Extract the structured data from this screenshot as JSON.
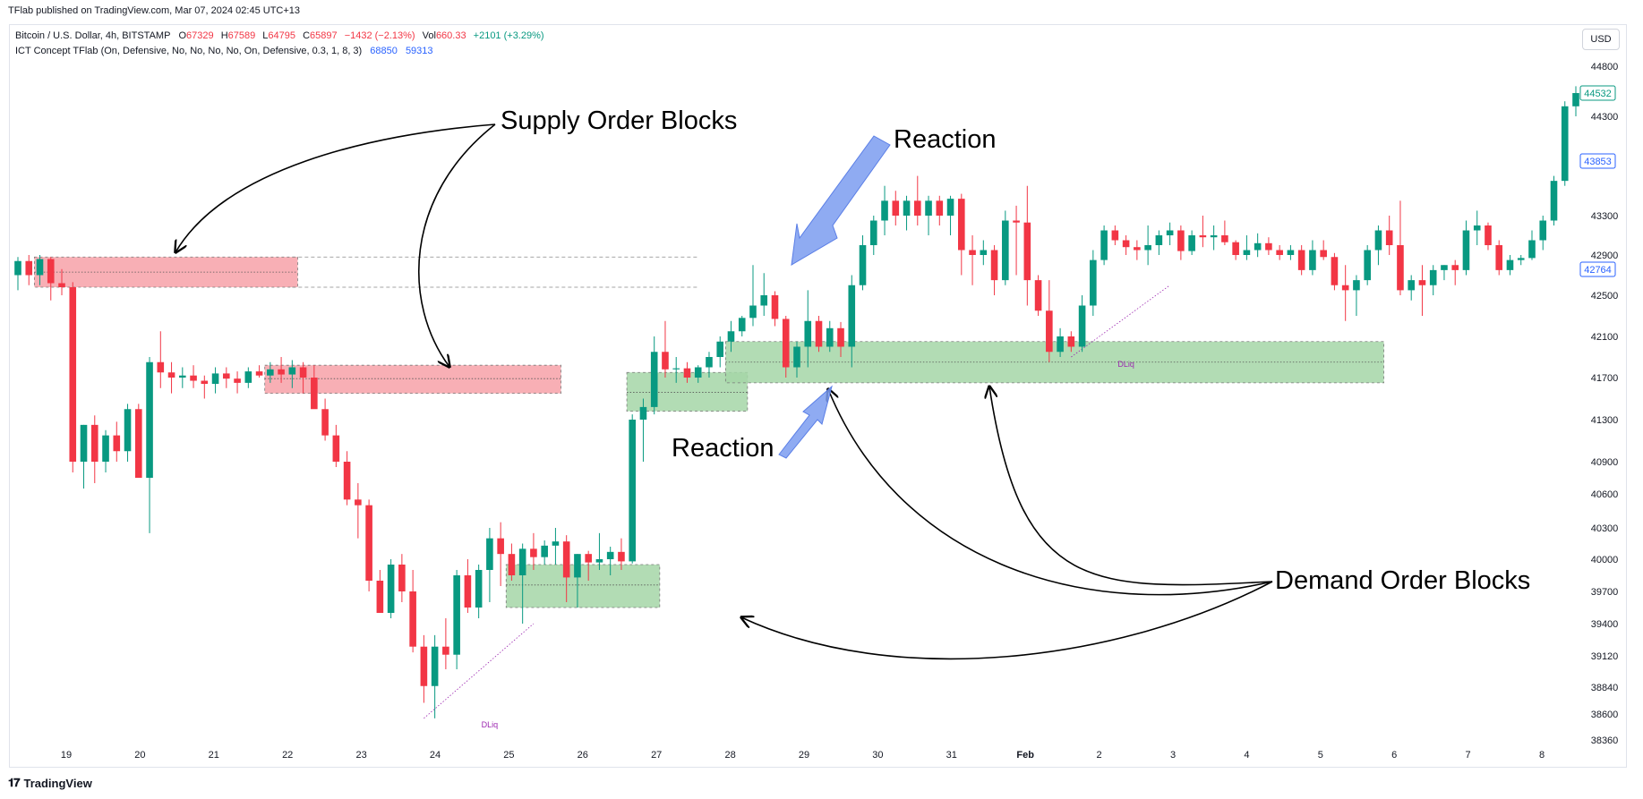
{
  "header": {
    "publisher": "TFlab published on TradingView.com, Mar 07, 2024 02:45 UTC+13"
  },
  "legend": {
    "symbol": "Bitcoin / U.S. Dollar, 4h, BITSTAMP",
    "o_label": "O",
    "o_value": "67329",
    "h_label": "H",
    "h_value": "67589",
    "l_label": "L",
    "l_value": "64795",
    "c_label": "C",
    "c_value": "65897",
    "change": "−1432 (−2.13%)",
    "vol_label": "Vol",
    "vol_value": "660.33",
    "vol_change": "+2101 (+3.29%)",
    "indicator": "ICT Concept TFlab (On, Defensive, No, No, No, No, On, Defensive, 0.3, 1, 8, 3)",
    "ind_value_1": "68850",
    "ind_value_2": "59313"
  },
  "currency_button": "USD",
  "footer": {
    "brand": "TradingView"
  },
  "colors": {
    "up": "#089981",
    "down": "#f23645",
    "supply_zone": "#f7a1a8",
    "demand_zone": "#a5d6a7",
    "reaction_arrow": "#7b9cf0",
    "dliq": "#9c27b0",
    "blue_label": "#2962ff"
  },
  "chart_data": {
    "type": "candlestick",
    "title": "Bitcoin / U.S. Dollar, 4h, BITSTAMP",
    "x_ticks": [
      "19",
      "20",
      "21",
      "22",
      "23",
      "24",
      "25",
      "26",
      "27",
      "28",
      "29",
      "30",
      "31",
      "Feb",
      "2",
      "3",
      "4",
      "5",
      "6",
      "7",
      "8"
    ],
    "y_ticks": [
      44800,
      44300,
      43300,
      42900,
      42500,
      42100,
      41700,
      41300,
      40900,
      40600,
      40300,
      40000,
      39700,
      39400,
      39120,
      38840,
      38600,
      38360
    ],
    "y_scale": "irregular price axis as labeled",
    "candles": [
      {
        "o": 42700,
        "h": 42880,
        "l": 42550,
        "c": 42840
      },
      {
        "o": 42840,
        "h": 42900,
        "l": 42600,
        "c": 42700
      },
      {
        "o": 42700,
        "h": 42900,
        "l": 42600,
        "c": 42860
      },
      {
        "o": 42860,
        "h": 42880,
        "l": 42450,
        "c": 42620
      },
      {
        "o": 42620,
        "h": 42760,
        "l": 42500,
        "c": 42580
      },
      {
        "o": 42580,
        "h": 42630,
        "l": 40800,
        "c": 40900
      },
      {
        "o": 40900,
        "h": 41250,
        "l": 40650,
        "c": 41250
      },
      {
        "o": 41250,
        "h": 41340,
        "l": 40700,
        "c": 40900
      },
      {
        "o": 40900,
        "h": 41200,
        "l": 40800,
        "c": 41150
      },
      {
        "o": 41150,
        "h": 41280,
        "l": 40900,
        "c": 41000
      },
      {
        "o": 41000,
        "h": 41450,
        "l": 40900,
        "c": 41400
      },
      {
        "o": 41400,
        "h": 41450,
        "l": 40800,
        "c": 40750
      },
      {
        "o": 40750,
        "h": 41900,
        "l": 40250,
        "c": 41850
      },
      {
        "o": 41850,
        "h": 42150,
        "l": 41600,
        "c": 41750
      },
      {
        "o": 41750,
        "h": 41850,
        "l": 41550,
        "c": 41700
      },
      {
        "o": 41700,
        "h": 41800,
        "l": 41600,
        "c": 41720
      },
      {
        "o": 41720,
        "h": 41820,
        "l": 41600,
        "c": 41670
      },
      {
        "o": 41670,
        "h": 41720,
        "l": 41500,
        "c": 41640
      },
      {
        "o": 41640,
        "h": 41800,
        "l": 41550,
        "c": 41740
      },
      {
        "o": 41740,
        "h": 41800,
        "l": 41600,
        "c": 41690
      },
      {
        "o": 41690,
        "h": 41760,
        "l": 41550,
        "c": 41650
      },
      {
        "o": 41650,
        "h": 41800,
        "l": 41600,
        "c": 41760
      },
      {
        "o": 41760,
        "h": 41820,
        "l": 41700,
        "c": 41720
      },
      {
        "o": 41720,
        "h": 41850,
        "l": 41650,
        "c": 41780
      },
      {
        "o": 41780,
        "h": 41900,
        "l": 41650,
        "c": 41730
      },
      {
        "o": 41730,
        "h": 41870,
        "l": 41600,
        "c": 41800
      },
      {
        "o": 41800,
        "h": 41850,
        "l": 41550,
        "c": 41700
      },
      {
        "o": 41700,
        "h": 41820,
        "l": 41450,
        "c": 41400
      },
      {
        "o": 41400,
        "h": 41500,
        "l": 41100,
        "c": 41150
      },
      {
        "o": 41150,
        "h": 41250,
        "l": 40850,
        "c": 40900
      },
      {
        "o": 40900,
        "h": 41000,
        "l": 40500,
        "c": 40550
      },
      {
        "o": 40550,
        "h": 40700,
        "l": 40200,
        "c": 40500
      },
      {
        "o": 40500,
        "h": 40550,
        "l": 39700,
        "c": 39800
      },
      {
        "o": 39800,
        "h": 39900,
        "l": 39500,
        "c": 39500
      },
      {
        "o": 39500,
        "h": 40000,
        "l": 39450,
        "c": 39950
      },
      {
        "o": 39950,
        "h": 40050,
        "l": 39600,
        "c": 39700
      },
      {
        "o": 39700,
        "h": 39900,
        "l": 39150,
        "c": 39200
      },
      {
        "o": 39200,
        "h": 39300,
        "l": 38700,
        "c": 38850
      },
      {
        "o": 38850,
        "h": 39300,
        "l": 38560,
        "c": 39200
      },
      {
        "o": 39200,
        "h": 39450,
        "l": 39000,
        "c": 39130
      },
      {
        "o": 39130,
        "h": 39900,
        "l": 39000,
        "c": 39850
      },
      {
        "o": 39850,
        "h": 40000,
        "l": 39500,
        "c": 39550
      },
      {
        "o": 39550,
        "h": 39950,
        "l": 39450,
        "c": 39900
      },
      {
        "o": 39900,
        "h": 40300,
        "l": 39600,
        "c": 40200
      },
      {
        "o": 40200,
        "h": 40350,
        "l": 39750,
        "c": 40050
      },
      {
        "o": 40050,
        "h": 40150,
        "l": 39800,
        "c": 39850
      },
      {
        "o": 39850,
        "h": 40150,
        "l": 39400,
        "c": 40100
      },
      {
        "o": 40100,
        "h": 40250,
        "l": 39900,
        "c": 40020
      },
      {
        "o": 40020,
        "h": 40180,
        "l": 39950,
        "c": 40130
      },
      {
        "o": 40130,
        "h": 40300,
        "l": 39950,
        "c": 40170
      },
      {
        "o": 40170,
        "h": 40230,
        "l": 39600,
        "c": 39830
      },
      {
        "o": 39830,
        "h": 40050,
        "l": 39550,
        "c": 40050
      },
      {
        "o": 40050,
        "h": 40080,
        "l": 39800,
        "c": 39970
      },
      {
        "o": 39970,
        "h": 40250,
        "l": 39900,
        "c": 40000
      },
      {
        "o": 40000,
        "h": 40120,
        "l": 39850,
        "c": 40070
      },
      {
        "o": 40070,
        "h": 40200,
        "l": 39900,
        "c": 39980
      },
      {
        "o": 39980,
        "h": 41350,
        "l": 39960,
        "c": 41300
      },
      {
        "o": 41300,
        "h": 41500,
        "l": 40900,
        "c": 41420
      },
      {
        "o": 41420,
        "h": 42100,
        "l": 41350,
        "c": 41950
      },
      {
        "o": 41950,
        "h": 42250,
        "l": 41700,
        "c": 41780
      },
      {
        "o": 41780,
        "h": 41900,
        "l": 41650,
        "c": 41790
      },
      {
        "o": 41790,
        "h": 41850,
        "l": 41650,
        "c": 41700
      },
      {
        "o": 41700,
        "h": 41820,
        "l": 41650,
        "c": 41800
      },
      {
        "o": 41800,
        "h": 41950,
        "l": 41700,
        "c": 41900
      },
      {
        "o": 41900,
        "h": 42100,
        "l": 41800,
        "c": 42050
      },
      {
        "o": 42050,
        "h": 42250,
        "l": 41950,
        "c": 42150
      },
      {
        "o": 42150,
        "h": 42300,
        "l": 42100,
        "c": 42280
      },
      {
        "o": 42280,
        "h": 42800,
        "l": 42200,
        "c": 42400
      },
      {
        "o": 42400,
        "h": 42720,
        "l": 42300,
        "c": 42500
      },
      {
        "o": 42500,
        "h": 42540,
        "l": 42200,
        "c": 42270
      },
      {
        "o": 42270,
        "h": 42300,
        "l": 41700,
        "c": 41800
      },
      {
        "o": 41800,
        "h": 42050,
        "l": 41700,
        "c": 42000
      },
      {
        "o": 42000,
        "h": 42550,
        "l": 41800,
        "c": 42250
      },
      {
        "o": 42250,
        "h": 42300,
        "l": 41950,
        "c": 42000
      },
      {
        "o": 42000,
        "h": 42250,
        "l": 41950,
        "c": 42180
      },
      {
        "o": 42180,
        "h": 42240,
        "l": 41900,
        "c": 42000
      },
      {
        "o": 42000,
        "h": 42700,
        "l": 41800,
        "c": 42600
      },
      {
        "o": 42600,
        "h": 43100,
        "l": 42550,
        "c": 43000
      },
      {
        "o": 43000,
        "h": 43300,
        "l": 42900,
        "c": 43250
      },
      {
        "o": 43250,
        "h": 43600,
        "l": 43100,
        "c": 43450
      },
      {
        "o": 43450,
        "h": 43550,
        "l": 43200,
        "c": 43300
      },
      {
        "o": 43300,
        "h": 43500,
        "l": 43150,
        "c": 43450
      },
      {
        "o": 43450,
        "h": 43700,
        "l": 43200,
        "c": 43300
      },
      {
        "o": 43300,
        "h": 43500,
        "l": 43100,
        "c": 43450
      },
      {
        "o": 43450,
        "h": 43500,
        "l": 43200,
        "c": 43300
      },
      {
        "o": 43300,
        "h": 43500,
        "l": 43100,
        "c": 43470
      },
      {
        "o": 43470,
        "h": 43520,
        "l": 42700,
        "c": 42950
      },
      {
        "o": 42950,
        "h": 43100,
        "l": 42600,
        "c": 42900
      },
      {
        "o": 42900,
        "h": 43050,
        "l": 42800,
        "c": 42950
      },
      {
        "o": 42950,
        "h": 43000,
        "l": 42500,
        "c": 42650
      },
      {
        "o": 42650,
        "h": 43350,
        "l": 42600,
        "c": 43250
      },
      {
        "o": 43250,
        "h": 43400,
        "l": 42700,
        "c": 43230
      },
      {
        "o": 43230,
        "h": 43600,
        "l": 42400,
        "c": 42650
      },
      {
        "o": 42650,
        "h": 42700,
        "l": 42300,
        "c": 42350
      },
      {
        "o": 42350,
        "h": 42650,
        "l": 41850,
        "c": 41950
      },
      {
        "o": 41950,
        "h": 42180,
        "l": 41900,
        "c": 42100
      },
      {
        "o": 42100,
        "h": 42150,
        "l": 41950,
        "c": 42000
      },
      {
        "o": 42000,
        "h": 42500,
        "l": 41950,
        "c": 42400
      },
      {
        "o": 42400,
        "h": 42950,
        "l": 42300,
        "c": 42850
      },
      {
        "o": 42850,
        "h": 43200,
        "l": 42800,
        "c": 43150
      },
      {
        "o": 43150,
        "h": 43200,
        "l": 43000,
        "c": 43050
      },
      {
        "o": 43050,
        "h": 43100,
        "l": 42900,
        "c": 42980
      },
      {
        "o": 42980,
        "h": 43050,
        "l": 42850,
        "c": 42950
      },
      {
        "o": 42950,
        "h": 43200,
        "l": 42800,
        "c": 43000
      },
      {
        "o": 43000,
        "h": 43150,
        "l": 42900,
        "c": 43100
      },
      {
        "o": 43100,
        "h": 43230,
        "l": 43000,
        "c": 43150
      },
      {
        "o": 43150,
        "h": 43200,
        "l": 42850,
        "c": 42940
      },
      {
        "o": 42940,
        "h": 43150,
        "l": 42900,
        "c": 43100
      },
      {
        "o": 43100,
        "h": 43300,
        "l": 42980,
        "c": 43080
      },
      {
        "o": 43080,
        "h": 43200,
        "l": 42950,
        "c": 43100
      },
      {
        "o": 43100,
        "h": 43250,
        "l": 43000,
        "c": 43030
      },
      {
        "o": 43030,
        "h": 43050,
        "l": 42850,
        "c": 42900
      },
      {
        "o": 42900,
        "h": 43100,
        "l": 42850,
        "c": 42950
      },
      {
        "o": 42950,
        "h": 43120,
        "l": 42880,
        "c": 43020
      },
      {
        "o": 43020,
        "h": 43080,
        "l": 42900,
        "c": 42950
      },
      {
        "o": 42950,
        "h": 43000,
        "l": 42850,
        "c": 42900
      },
      {
        "o": 42900,
        "h": 43000,
        "l": 42850,
        "c": 42950
      },
      {
        "o": 42950,
        "h": 43000,
        "l": 42700,
        "c": 42750
      },
      {
        "o": 42750,
        "h": 43050,
        "l": 42700,
        "c": 42950
      },
      {
        "o": 42950,
        "h": 43050,
        "l": 42850,
        "c": 42880
      },
      {
        "o": 42880,
        "h": 42920,
        "l": 42550,
        "c": 42600
      },
      {
        "o": 42600,
        "h": 42800,
        "l": 42250,
        "c": 42550
      },
      {
        "o": 42550,
        "h": 42700,
        "l": 42300,
        "c": 42650
      },
      {
        "o": 42650,
        "h": 43000,
        "l": 42600,
        "c": 42950
      },
      {
        "o": 42950,
        "h": 43200,
        "l": 42800,
        "c": 43150
      },
      {
        "o": 43150,
        "h": 43300,
        "l": 42900,
        "c": 43000
      },
      {
        "o": 43000,
        "h": 43450,
        "l": 42500,
        "c": 42550
      },
      {
        "o": 42550,
        "h": 42700,
        "l": 42450,
        "c": 42650
      },
      {
        "o": 42650,
        "h": 42800,
        "l": 42300,
        "c": 42600
      },
      {
        "o": 42600,
        "h": 42800,
        "l": 42500,
        "c": 42750
      },
      {
        "o": 42750,
        "h": 42800,
        "l": 42650,
        "c": 42800
      },
      {
        "o": 42800,
        "h": 42850,
        "l": 42600,
        "c": 42750
      },
      {
        "o": 42750,
        "h": 43250,
        "l": 42700,
        "c": 43150
      },
      {
        "o": 43150,
        "h": 43350,
        "l": 43000,
        "c": 43200
      },
      {
        "o": 43200,
        "h": 43230,
        "l": 42950,
        "c": 43000
      },
      {
        "o": 43000,
        "h": 43050,
        "l": 42700,
        "c": 42750
      },
      {
        "o": 42750,
        "h": 42900,
        "l": 42700,
        "c": 42850
      },
      {
        "o": 42850,
        "h": 42900,
        "l": 42800,
        "c": 42870
      },
      {
        "o": 42870,
        "h": 43150,
        "l": 42850,
        "c": 43050
      },
      {
        "o": 43050,
        "h": 43300,
        "l": 42950,
        "c": 43250
      },
      {
        "o": 43250,
        "h": 43700,
        "l": 43200,
        "c": 43650
      },
      {
        "o": 43650,
        "h": 44450,
        "l": 43600,
        "c": 44400
      },
      {
        "o": 44400,
        "h": 44600,
        "l": 44300,
        "c": 44532
      }
    ],
    "zones": [
      {
        "kind": "supply",
        "label": "Supply Order Block",
        "top": 42880,
        "bottom": 42580,
        "mid": 42730
      },
      {
        "kind": "supply",
        "label": "Supply Order Block",
        "top": 41820,
        "bottom": 41550,
        "mid": 41690
      },
      {
        "kind": "demand",
        "label": "Demand Order Block",
        "top": 39950,
        "bottom": 39550,
        "mid": 39760
      },
      {
        "kind": "demand",
        "label": "Demand Order Block",
        "top": 41750,
        "bottom": 41380,
        "mid": 41560
      },
      {
        "kind": "demand",
        "label": "Demand Order Block",
        "top": 42050,
        "bottom": 41650,
        "mid": 41850
      }
    ],
    "price_labels": [
      {
        "value": "44532",
        "style": "green"
      },
      {
        "value": "43853",
        "style": "blue"
      },
      {
        "value": "42764",
        "style": "blue"
      }
    ],
    "dliq_label": "DLiq",
    "annotations": {
      "supply": "Supply Order Blocks",
      "demand": "Demand Order Blocks",
      "reaction": "Reaction"
    }
  }
}
